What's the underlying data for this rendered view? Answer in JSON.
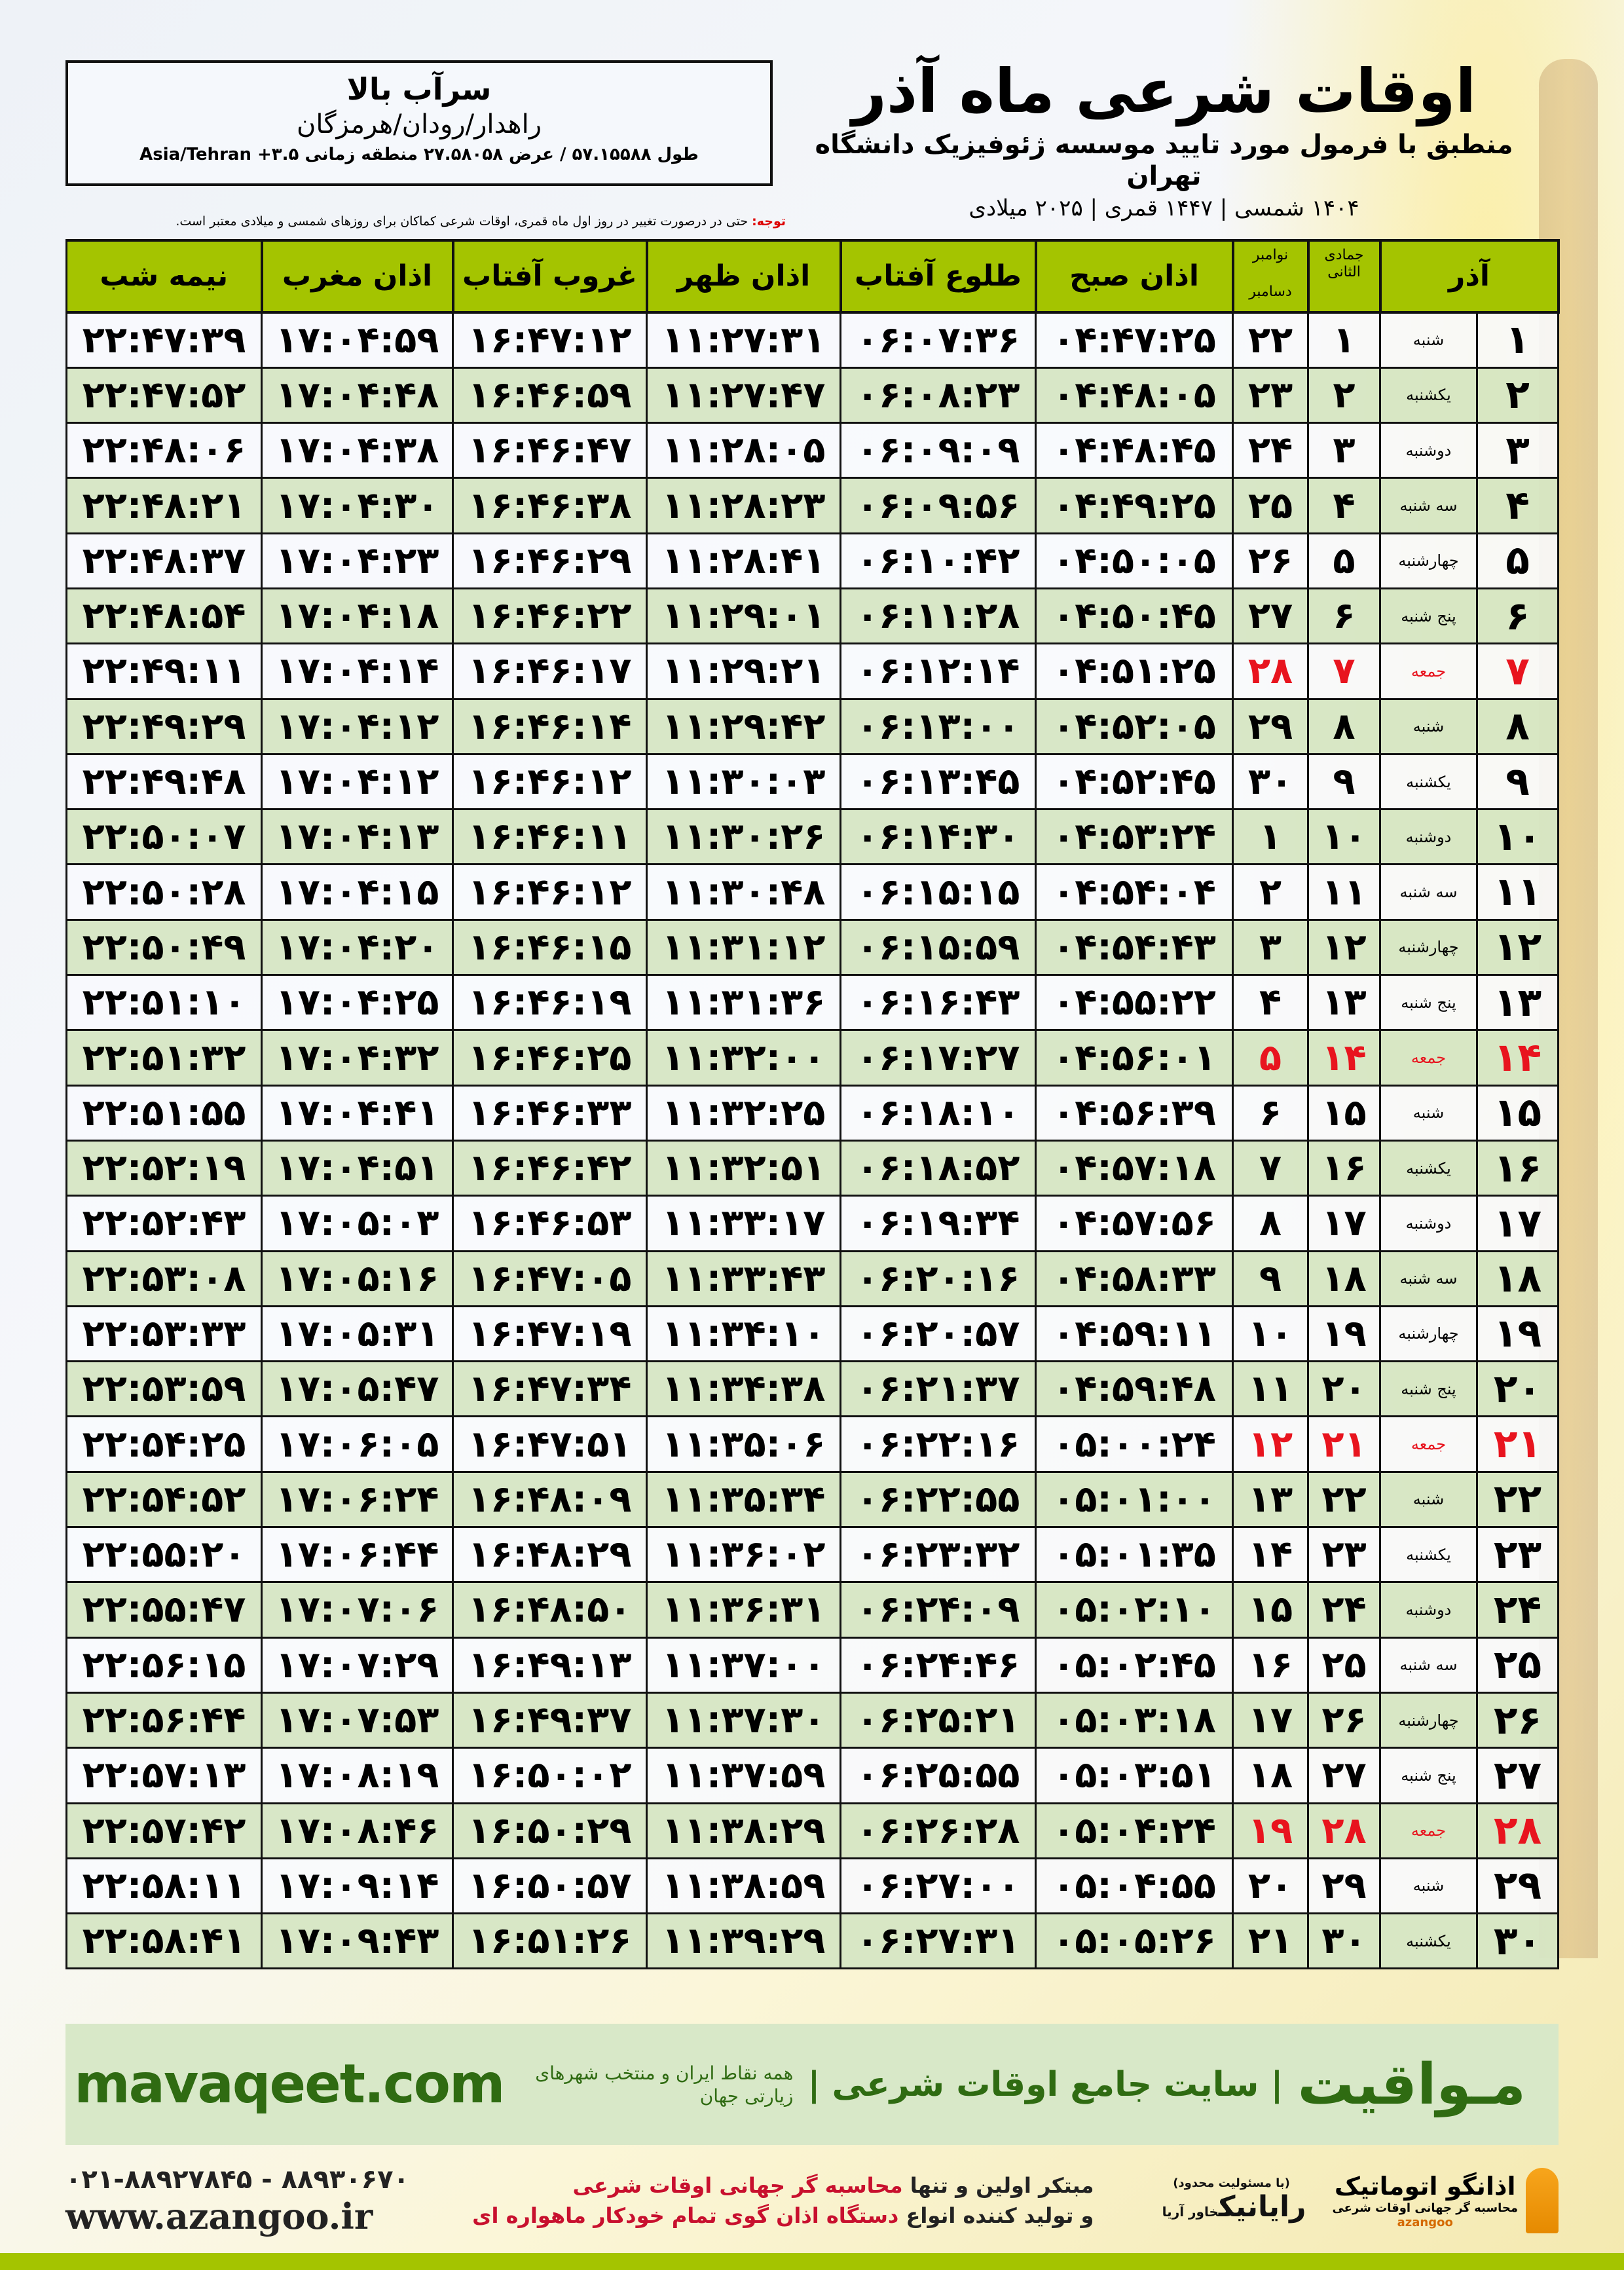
{
  "header": {
    "title": "اوقات شرعی ماه آذر",
    "subtitle": "منطبق با فرمول مورد تایید موسسه ژئوفیزیک دانشگاه تهران",
    "years": "۱۴۰۴ شمسی | ۱۴۴۷ قمری | ۲۰۲۵ میلادی"
  },
  "location": {
    "city": "سرآب بالا",
    "region": "راهدار/رودان/هرمزگان",
    "coords": "طول ۵۷.۱۵۵۸۸ / عرض ۲۷.۵۸۰۵۸ منطقه زمانی ۳.۵+ Asia/Tehran"
  },
  "note": {
    "label": "توجه:",
    "text": " حتی در درصورت تغییر در روز اول ماه قمری، اوقات شرعی کماکان برای روزهای شمسی و میلادی معتبر است."
  },
  "table": {
    "headers": {
      "month": "آذر",
      "hijri": "جمادی الثانی",
      "greg_top": "نوامبر",
      "greg_bottom": "دسامبر",
      "fajr": "اذان صبح",
      "sunrise": "طلوع آفتاب",
      "dhuhr": "اذان ظهر",
      "sunset": "غروب آفتاب",
      "maghrib": "اذان مغرب",
      "midnight": "نیمه شب"
    },
    "friday_color": "#e8141e",
    "rows": [
      [
        "۱",
        "شنبه",
        "۱",
        "۲۲",
        "۰۴:۴۷:۲۵",
        "۰۶:۰۷:۳۶",
        "۱۱:۲۷:۳۱",
        "۱۶:۴۷:۱۲",
        "۱۷:۰۴:۵۹",
        "۲۲:۴۷:۳۹"
      ],
      [
        "۲",
        "یکشنبه",
        "۲",
        "۲۳",
        "۰۴:۴۸:۰۵",
        "۰۶:۰۸:۲۳",
        "۱۱:۲۷:۴۷",
        "۱۶:۴۶:۵۹",
        "۱۷:۰۴:۴۸",
        "۲۲:۴۷:۵۲"
      ],
      [
        "۳",
        "دوشنبه",
        "۳",
        "۲۴",
        "۰۴:۴۸:۴۵",
        "۰۶:۰۹:۰۹",
        "۱۱:۲۸:۰۵",
        "۱۶:۴۶:۴۷",
        "۱۷:۰۴:۳۸",
        "۲۲:۴۸:۰۶"
      ],
      [
        "۴",
        "سه شنبه",
        "۴",
        "۲۵",
        "۰۴:۴۹:۲۵",
        "۰۶:۰۹:۵۶",
        "۱۱:۲۸:۲۳",
        "۱۶:۴۶:۳۸",
        "۱۷:۰۴:۳۰",
        "۲۲:۴۸:۲۱"
      ],
      [
        "۵",
        "چهارشنبه",
        "۵",
        "۲۶",
        "۰۴:۵۰:۰۵",
        "۰۶:۱۰:۴۲",
        "۱۱:۲۸:۴۱",
        "۱۶:۴۶:۲۹",
        "۱۷:۰۴:۲۳",
        "۲۲:۴۸:۳۷"
      ],
      [
        "۶",
        "پنج شنبه",
        "۶",
        "۲۷",
        "۰۴:۵۰:۴۵",
        "۰۶:۱۱:۲۸",
        "۱۱:۲۹:۰۱",
        "۱۶:۴۶:۲۲",
        "۱۷:۰۴:۱۸",
        "۲۲:۴۸:۵۴"
      ],
      [
        "۷",
        "جمعه",
        "۷",
        "۲۸",
        "۰۴:۵۱:۲۵",
        "۰۶:۱۲:۱۴",
        "۱۱:۲۹:۲۱",
        "۱۶:۴۶:۱۷",
        "۱۷:۰۴:۱۴",
        "۲۲:۴۹:۱۱"
      ],
      [
        "۸",
        "شنبه",
        "۸",
        "۲۹",
        "۰۴:۵۲:۰۵",
        "۰۶:۱۳:۰۰",
        "۱۱:۲۹:۴۲",
        "۱۶:۴۶:۱۴",
        "۱۷:۰۴:۱۲",
        "۲۲:۴۹:۲۹"
      ],
      [
        "۹",
        "یکشنبه",
        "۹",
        "۳۰",
        "۰۴:۵۲:۴۵",
        "۰۶:۱۳:۴۵",
        "۱۱:۳۰:۰۳",
        "۱۶:۴۶:۱۲",
        "۱۷:۰۴:۱۲",
        "۲۲:۴۹:۴۸"
      ],
      [
        "۱۰",
        "دوشنبه",
        "۱۰",
        "۱",
        "۰۴:۵۳:۲۴",
        "۰۶:۱۴:۳۰",
        "۱۱:۳۰:۲۶",
        "۱۶:۴۶:۱۱",
        "۱۷:۰۴:۱۳",
        "۲۲:۵۰:۰۷"
      ],
      [
        "۱۱",
        "سه شنبه",
        "۱۱",
        "۲",
        "۰۴:۵۴:۰۴",
        "۰۶:۱۵:۱۵",
        "۱۱:۳۰:۴۸",
        "۱۶:۴۶:۱۲",
        "۱۷:۰۴:۱۵",
        "۲۲:۵۰:۲۸"
      ],
      [
        "۱۲",
        "چهارشنبه",
        "۱۲",
        "۳",
        "۰۴:۵۴:۴۳",
        "۰۶:۱۵:۵۹",
        "۱۱:۳۱:۱۲",
        "۱۶:۴۶:۱۵",
        "۱۷:۰۴:۲۰",
        "۲۲:۵۰:۴۹"
      ],
      [
        "۱۳",
        "پنج شنبه",
        "۱۳",
        "۴",
        "۰۴:۵۵:۲۲",
        "۰۶:۱۶:۴۳",
        "۱۱:۳۱:۳۶",
        "۱۶:۴۶:۱۹",
        "۱۷:۰۴:۲۵",
        "۲۲:۵۱:۱۰"
      ],
      [
        "۱۴",
        "جمعه",
        "۱۴",
        "۵",
        "۰۴:۵۶:۰۱",
        "۰۶:۱۷:۲۷",
        "۱۱:۳۲:۰۰",
        "۱۶:۴۶:۲۵",
        "۱۷:۰۴:۳۲",
        "۲۲:۵۱:۳۲"
      ],
      [
        "۱۵",
        "شنبه",
        "۱۵",
        "۶",
        "۰۴:۵۶:۳۹",
        "۰۶:۱۸:۱۰",
        "۱۱:۳۲:۲۵",
        "۱۶:۴۶:۳۳",
        "۱۷:۰۴:۴۱",
        "۲۲:۵۱:۵۵"
      ],
      [
        "۱۶",
        "یکشنبه",
        "۱۶",
        "۷",
        "۰۴:۵۷:۱۸",
        "۰۶:۱۸:۵۲",
        "۱۱:۳۲:۵۱",
        "۱۶:۴۶:۴۲",
        "۱۷:۰۴:۵۱",
        "۲۲:۵۲:۱۹"
      ],
      [
        "۱۷",
        "دوشنبه",
        "۱۷",
        "۸",
        "۰۴:۵۷:۵۶",
        "۰۶:۱۹:۳۴",
        "۱۱:۳۳:۱۷",
        "۱۶:۴۶:۵۳",
        "۱۷:۰۵:۰۳",
        "۲۲:۵۲:۴۳"
      ],
      [
        "۱۸",
        "سه شنبه",
        "۱۸",
        "۹",
        "۰۴:۵۸:۳۳",
        "۰۶:۲۰:۱۶",
        "۱۱:۳۳:۴۳",
        "۱۶:۴۷:۰۵",
        "۱۷:۰۵:۱۶",
        "۲۲:۵۳:۰۸"
      ],
      [
        "۱۹",
        "چهارشنبه",
        "۱۹",
        "۱۰",
        "۰۴:۵۹:۱۱",
        "۰۶:۲۰:۵۷",
        "۱۱:۳۴:۱۰",
        "۱۶:۴۷:۱۹",
        "۱۷:۰۵:۳۱",
        "۲۲:۵۳:۳۳"
      ],
      [
        "۲۰",
        "پنج شنبه",
        "۲۰",
        "۱۱",
        "۰۴:۵۹:۴۸",
        "۰۶:۲۱:۳۷",
        "۱۱:۳۴:۳۸",
        "۱۶:۴۷:۳۴",
        "۱۷:۰۵:۴۷",
        "۲۲:۵۳:۵۹"
      ],
      [
        "۲۱",
        "جمعه",
        "۲۱",
        "۱۲",
        "۰۵:۰۰:۲۴",
        "۰۶:۲۲:۱۶",
        "۱۱:۳۵:۰۶",
        "۱۶:۴۷:۵۱",
        "۱۷:۰۶:۰۵",
        "۲۲:۵۴:۲۵"
      ],
      [
        "۲۲",
        "شنبه",
        "۲۲",
        "۱۳",
        "۰۵:۰۱:۰۰",
        "۰۶:۲۲:۵۵",
        "۱۱:۳۵:۳۴",
        "۱۶:۴۸:۰۹",
        "۱۷:۰۶:۲۴",
        "۲۲:۵۴:۵۲"
      ],
      [
        "۲۳",
        "یکشنبه",
        "۲۳",
        "۱۴",
        "۰۵:۰۱:۳۵",
        "۰۶:۲۳:۳۲",
        "۱۱:۳۶:۰۲",
        "۱۶:۴۸:۲۹",
        "۱۷:۰۶:۴۴",
        "۲۲:۵۵:۲۰"
      ],
      [
        "۲۴",
        "دوشنبه",
        "۲۴",
        "۱۵",
        "۰۵:۰۲:۱۰",
        "۰۶:۲۴:۰۹",
        "۱۱:۳۶:۳۱",
        "۱۶:۴۸:۵۰",
        "۱۷:۰۷:۰۶",
        "۲۲:۵۵:۴۷"
      ],
      [
        "۲۵",
        "سه شنبه",
        "۲۵",
        "۱۶",
        "۰۵:۰۲:۴۵",
        "۰۶:۲۴:۴۶",
        "۱۱:۳۷:۰۰",
        "۱۶:۴۹:۱۳",
        "۱۷:۰۷:۲۹",
        "۲۲:۵۶:۱۵"
      ],
      [
        "۲۶",
        "چهارشنبه",
        "۲۶",
        "۱۷",
        "۰۵:۰۳:۱۸",
        "۰۶:۲۵:۲۱",
        "۱۱:۳۷:۳۰",
        "۱۶:۴۹:۳۷",
        "۱۷:۰۷:۵۳",
        "۲۲:۵۶:۴۴"
      ],
      [
        "۲۷",
        "پنج شنبه",
        "۲۷",
        "۱۸",
        "۰۵:۰۳:۵۱",
        "۰۶:۲۵:۵۵",
        "۱۱:۳۷:۵۹",
        "۱۶:۵۰:۰۲",
        "۱۷:۰۸:۱۹",
        "۲۲:۵۷:۱۳"
      ],
      [
        "۲۸",
        "جمعه",
        "۲۸",
        "۱۹",
        "۰۵:۰۴:۲۴",
        "۰۶:۲۶:۲۸",
        "۱۱:۳۸:۲۹",
        "۱۶:۵۰:۲۹",
        "۱۷:۰۸:۴۶",
        "۲۲:۵۷:۴۲"
      ],
      [
        "۲۹",
        "شنبه",
        "۲۹",
        "۲۰",
        "۰۵:۰۴:۵۵",
        "۰۶:۲۷:۰۰",
        "۱۱:۳۸:۵۹",
        "۱۶:۵۰:۵۷",
        "۱۷:۰۹:۱۴",
        "۲۲:۵۸:۱۱"
      ],
      [
        "۳۰",
        "یکشنبه",
        "۳۰",
        "۲۱",
        "۰۵:۰۵:۲۶",
        "۰۶:۲۷:۳۱",
        "۱۱:۳۹:۲۹",
        "۱۶:۵۱:۲۶",
        "۱۷:۰۹:۴۳",
        "۲۲:۵۸:۴۱"
      ]
    ]
  },
  "banner": {
    "brand": "مـواقیت",
    "tagline": "| سایت جامع اوقات شرعی |",
    "tagline2": "همه نقاط ایران و منتخب شهرهای زیارتی جهان",
    "url": "mavaqeet.com",
    "color": "#2f6b12"
  },
  "footer": {
    "phone": "۰۲۱-۸۸۹۲۷۸۴۵ - ۸۸۹۳۰۶۷۰",
    "site": "www.azangoo.ir",
    "pitch1_a": "مبتکر اولین و تنها ",
    "pitch1_b": "محاسبه گر جهانی اوقات شرعی",
    "pitch2_a": "و تولید کننده انواع ",
    "pitch2_b": "دستگاه اذان گوی تمام خودکار ماهواره ای",
    "logo_rayanik": "رایانیک",
    "logo_rayanik_sub": "(با مسئولیت محدود)",
    "logo_rayanik_side": "خاور آریا",
    "logo_azangoo": "اذانگو اتوماتیک",
    "logo_azangoo_sub": "محاسبه گر جهانی اوقات شرعی",
    "logo_azangoo_en": "azangoo"
  }
}
